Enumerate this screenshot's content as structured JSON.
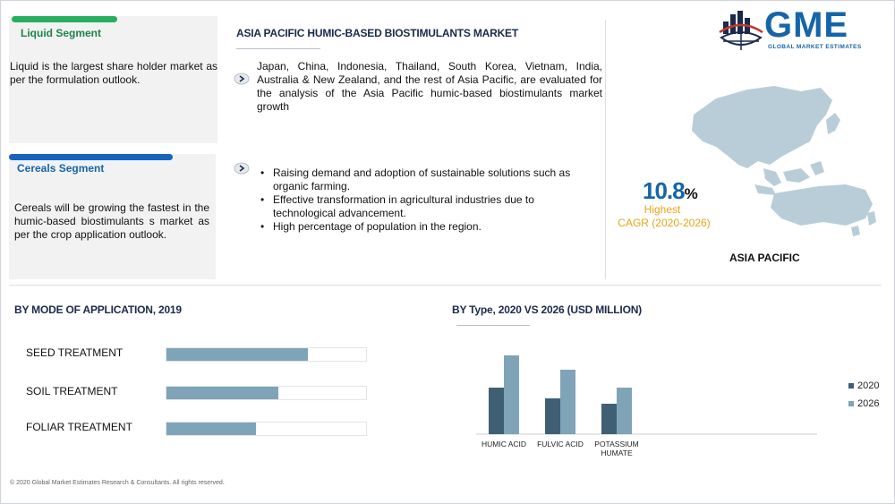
{
  "logo": {
    "letters": "GME",
    "tagline": "GLOBAL MARKET ESTIMATES"
  },
  "liquid_segment": {
    "title": "Liquid Segment",
    "text": "Liquid is the largest share holder market as per the formulation outlook.",
    "accent_color": "#27ae60"
  },
  "cereals_segment": {
    "title": "Cereals Segment",
    "text": "Cereals will be growing the fastest in the humic-based biostimulants s market as per the crop application outlook.",
    "accent_color": "#1565c0"
  },
  "header": {
    "title": "ASIA PACIFIC HUMIC-BASED BIOSTIMULANTS MARKET",
    "description": "Japan, China, Indonesia, Thailand, South Korea, Vietnam, India, Australia & New Zealand, and the rest of Asia Pacific, are evaluated for the analysis of the Asia Pacific humic-based biostimulants market growth",
    "bullets": [
      "Raising demand and adoption of sustainable solutions such as organic farming.",
      "Effective transformation in agricultural industries due to technological advancement.",
      "High percentage of population in the region."
    ]
  },
  "cagr": {
    "value": "10.8",
    "unit": "%",
    "label_line1": "Highest",
    "label_line2": "CAGR (2020-2026)"
  },
  "region_label": "ASIA PACIFIC",
  "footer": "© 2020 Global Market Estimates Research & Consultants. All rights reserved.",
  "chart_data": [
    {
      "type": "bar",
      "orientation": "horizontal",
      "title": "BY  MODE OF APPLICATION, 2019",
      "categories": [
        "SEED TREATMENT",
        "SOIL TREATMENT",
        "FOLIAR TREATMENT"
      ],
      "values": [
        0.71,
        0.56,
        0.45
      ],
      "value_scale": "fraction of full bar",
      "color": "#7fa4b7"
    },
    {
      "type": "bar",
      "title": "BY Type,  2020 VS 2026 (USD MILLION)",
      "categories": [
        "HUMIC ACID",
        "FULVIC ACID",
        "POTASSIUM HUMATE"
      ],
      "series": [
        {
          "name": "2020",
          "values": [
            52,
            40,
            34
          ],
          "color": "#3f6074"
        },
        {
          "name": "2026",
          "values": [
            88,
            72,
            52
          ],
          "color": "#7fa4b7"
        }
      ],
      "ylim": [
        0,
        100
      ],
      "legend": "right",
      "grid": false
    }
  ]
}
